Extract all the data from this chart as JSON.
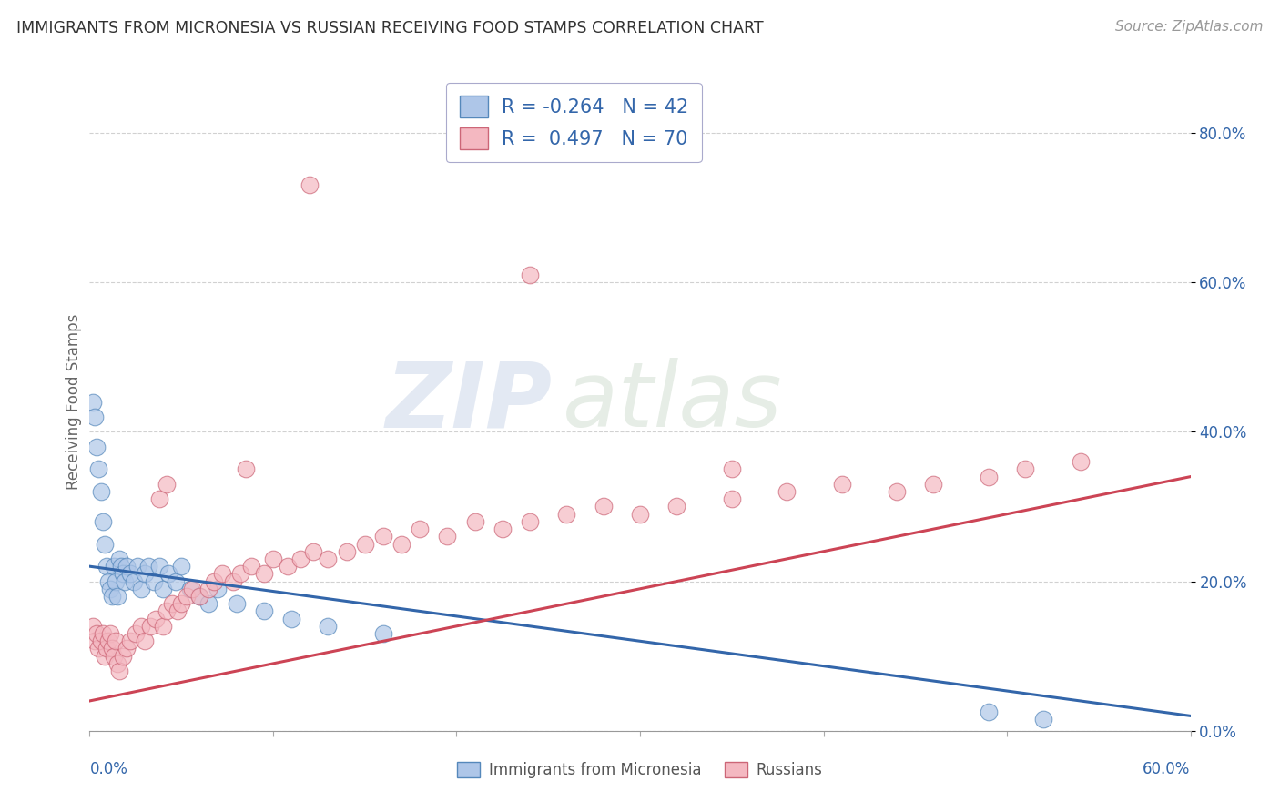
{
  "title": "IMMIGRANTS FROM MICRONESIA VS RUSSIAN RECEIVING FOOD STAMPS CORRELATION CHART",
  "source": "Source: ZipAtlas.com",
  "ylabel": "Receiving Food Stamps",
  "legend_blue_r": "R = -0.264",
  "legend_blue_n": "N = 42",
  "legend_pink_r": "R =  0.497",
  "legend_pink_n": "N = 70",
  "legend_label_blue": "Immigrants from Micronesia",
  "legend_label_pink": "Russians",
  "blue_fill": "#aec6e8",
  "pink_fill": "#f4b8c1",
  "blue_edge": "#5588bb",
  "pink_edge": "#cc6677",
  "blue_line": "#3366aa",
  "pink_line": "#cc4455",
  "watermark_zip": "ZIP",
  "watermark_atlas": "atlas",
  "blue_scatter_x": [
    0.002,
    0.003,
    0.004,
    0.005,
    0.006,
    0.007,
    0.008,
    0.009,
    0.01,
    0.011,
    0.012,
    0.013,
    0.014,
    0.015,
    0.016,
    0.017,
    0.018,
    0.019,
    0.02,
    0.022,
    0.024,
    0.026,
    0.028,
    0.03,
    0.032,
    0.035,
    0.038,
    0.04,
    0.043,
    0.047,
    0.05,
    0.055,
    0.06,
    0.065,
    0.07,
    0.08,
    0.095,
    0.11,
    0.13,
    0.16,
    0.49,
    0.52
  ],
  "blue_scatter_y": [
    0.44,
    0.42,
    0.38,
    0.35,
    0.32,
    0.28,
    0.25,
    0.22,
    0.2,
    0.19,
    0.18,
    0.22,
    0.2,
    0.18,
    0.23,
    0.22,
    0.21,
    0.2,
    0.22,
    0.21,
    0.2,
    0.22,
    0.19,
    0.21,
    0.22,
    0.2,
    0.22,
    0.19,
    0.21,
    0.2,
    0.22,
    0.19,
    0.18,
    0.17,
    0.19,
    0.17,
    0.16,
    0.15,
    0.14,
    0.13,
    0.025,
    0.015
  ],
  "pink_scatter_x": [
    0.002,
    0.003,
    0.004,
    0.005,
    0.006,
    0.007,
    0.008,
    0.009,
    0.01,
    0.011,
    0.012,
    0.013,
    0.014,
    0.015,
    0.016,
    0.018,
    0.02,
    0.022,
    0.025,
    0.028,
    0.03,
    0.033,
    0.036,
    0.04,
    0.042,
    0.045,
    0.048,
    0.05,
    0.053,
    0.056,
    0.06,
    0.065,
    0.068,
    0.072,
    0.078,
    0.082,
    0.088,
    0.095,
    0.1,
    0.108,
    0.115,
    0.122,
    0.13,
    0.14,
    0.15,
    0.16,
    0.17,
    0.18,
    0.195,
    0.21,
    0.225,
    0.24,
    0.26,
    0.28,
    0.3,
    0.32,
    0.35,
    0.38,
    0.41,
    0.44,
    0.46,
    0.49,
    0.51,
    0.54,
    0.038,
    0.042,
    0.085,
    0.12,
    0.24,
    0.35
  ],
  "pink_scatter_y": [
    0.14,
    0.12,
    0.13,
    0.11,
    0.12,
    0.13,
    0.1,
    0.11,
    0.12,
    0.13,
    0.11,
    0.1,
    0.12,
    0.09,
    0.08,
    0.1,
    0.11,
    0.12,
    0.13,
    0.14,
    0.12,
    0.14,
    0.15,
    0.14,
    0.16,
    0.17,
    0.16,
    0.17,
    0.18,
    0.19,
    0.18,
    0.19,
    0.2,
    0.21,
    0.2,
    0.21,
    0.22,
    0.21,
    0.23,
    0.22,
    0.23,
    0.24,
    0.23,
    0.24,
    0.25,
    0.26,
    0.25,
    0.27,
    0.26,
    0.28,
    0.27,
    0.28,
    0.29,
    0.3,
    0.29,
    0.3,
    0.31,
    0.32,
    0.33,
    0.32,
    0.33,
    0.34,
    0.35,
    0.36,
    0.31,
    0.33,
    0.35,
    0.73,
    0.61,
    0.35
  ],
  "xlim": [
    0.0,
    0.6
  ],
  "ylim": [
    0.0,
    0.88
  ],
  "yticks": [
    0.0,
    0.2,
    0.4,
    0.6,
    0.8
  ],
  "ytick_labels": [
    "0.0%",
    "20.0%",
    "40.0%",
    "60.0%",
    "80.0%"
  ],
  "blue_line_x0": 0.0,
  "blue_line_x1": 0.6,
  "blue_line_y0": 0.22,
  "blue_line_y1": 0.02,
  "pink_line_x0": 0.0,
  "pink_line_x1": 0.6,
  "pink_line_y0": 0.04,
  "pink_line_y1": 0.34
}
